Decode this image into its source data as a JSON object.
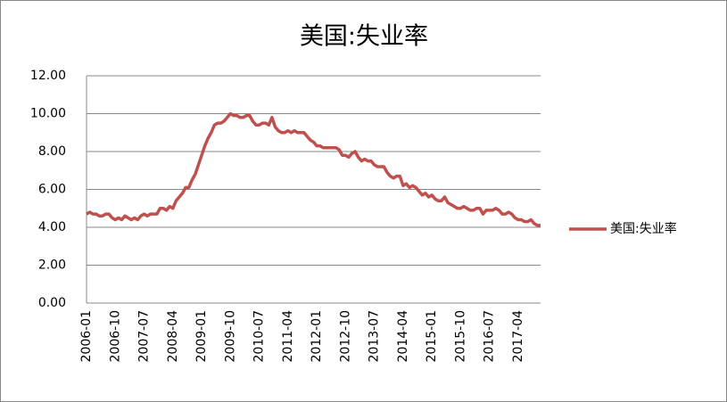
{
  "chart_data": {
    "type": "line",
    "title": "美国:失业率",
    "categories": [
      "2006-01",
      null,
      null,
      null,
      null,
      null,
      null,
      null,
      null,
      "2006-10",
      null,
      null,
      null,
      null,
      null,
      null,
      null,
      null,
      "2007-07",
      null,
      null,
      null,
      null,
      null,
      null,
      null,
      null,
      "2008-04",
      null,
      null,
      null,
      null,
      null,
      null,
      null,
      null,
      "2009-01",
      null,
      null,
      null,
      null,
      null,
      null,
      null,
      null,
      "2009-10",
      null,
      null,
      null,
      null,
      null,
      null,
      null,
      null,
      "2010-07",
      null,
      null,
      null,
      null,
      null,
      null,
      null,
      null,
      "2011-04",
      null,
      null,
      null,
      null,
      null,
      null,
      null,
      null,
      "2012-01",
      null,
      null,
      null,
      null,
      null,
      null,
      null,
      null,
      "2012-10",
      null,
      null,
      null,
      null,
      null,
      null,
      null,
      null,
      "2013-07",
      null,
      null,
      null,
      null,
      null,
      null,
      null,
      null,
      "2014-04",
      null,
      null,
      null,
      null,
      null,
      null,
      null,
      null,
      "2015-01",
      null,
      null,
      null,
      null,
      null,
      null,
      null,
      null,
      "2015-10",
      null,
      null,
      null,
      null,
      null,
      null,
      null,
      null,
      "2016-07",
      null,
      null,
      null,
      null,
      null,
      null,
      null,
      null,
      "2017-04",
      null,
      null,
      null,
      null,
      null,
      null,
      null
    ],
    "series": [
      {
        "name": "美国:失业率",
        "color": "#c0504d",
        "values": [
          4.7,
          4.8,
          4.7,
          4.7,
          4.6,
          4.6,
          4.7,
          4.7,
          4.5,
          4.4,
          4.5,
          4.4,
          4.6,
          4.5,
          4.4,
          4.5,
          4.4,
          4.6,
          4.7,
          4.6,
          4.7,
          4.7,
          4.7,
          5.0,
          5.0,
          4.9,
          5.1,
          5.0,
          5.4,
          5.6,
          5.8,
          6.1,
          6.1,
          6.5,
          6.8,
          7.3,
          7.8,
          8.3,
          8.7,
          9.0,
          9.4,
          9.5,
          9.5,
          9.6,
          9.8,
          10.0,
          9.9,
          9.9,
          9.8,
          9.8,
          9.9,
          9.9,
          9.6,
          9.4,
          9.4,
          9.5,
          9.5,
          9.4,
          9.8,
          9.3,
          9.1,
          9.0,
          9.0,
          9.1,
          9.0,
          9.1,
          9.0,
          9.0,
          9.0,
          8.8,
          8.6,
          8.5,
          8.3,
          8.3,
          8.2,
          8.2,
          8.2,
          8.2,
          8.2,
          8.1,
          7.8,
          7.8,
          7.7,
          7.9,
          8.0,
          7.7,
          7.5,
          7.6,
          7.5,
          7.5,
          7.3,
          7.2,
          7.2,
          7.2,
          6.9,
          6.7,
          6.6,
          6.7,
          6.7,
          6.2,
          6.3,
          6.1,
          6.2,
          6.1,
          5.9,
          5.7,
          5.8,
          5.6,
          5.7,
          5.5,
          5.4,
          5.4,
          5.6,
          5.3,
          5.2,
          5.1,
          5.0,
          5.0,
          5.1,
          5.0,
          4.9,
          4.9,
          5.0,
          5.0,
          4.7,
          4.9,
          4.9,
          4.9,
          5.0,
          4.9,
          4.7,
          4.7,
          4.8,
          4.7,
          4.5,
          4.4,
          4.4,
          4.3,
          4.3,
          4.4,
          4.2,
          4.1,
          4.1
        ]
      }
    ],
    "ylim": [
      0,
      12
    ],
    "yticks": [
      {
        "value": 0,
        "label": "0.00"
      },
      {
        "value": 2,
        "label": "2.00"
      },
      {
        "value": 4,
        "label": "4.00"
      },
      {
        "value": 6,
        "label": "6.00"
      },
      {
        "value": 8,
        "label": "8.00"
      },
      {
        "value": 10,
        "label": "10.00"
      },
      {
        "value": 12,
        "label": "12.00"
      }
    ],
    "grid": true,
    "legend": "right"
  }
}
